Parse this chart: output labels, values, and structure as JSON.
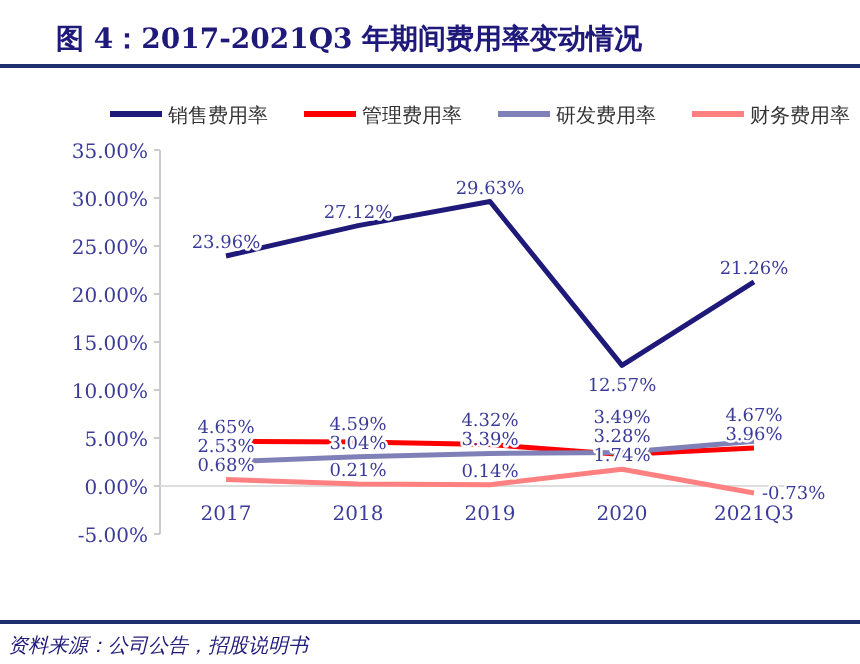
{
  "chart_data": {
    "type": "line",
    "title": "图 4：2017-2021Q3 年期间费用率变动情况",
    "categories": [
      "2017",
      "2018",
      "2019",
      "2020",
      "2021Q3"
    ],
    "series": [
      {
        "name": "销售费用率",
        "color": "#1f1a7a",
        "values": [
          23.96,
          27.12,
          29.63,
          12.57,
          21.26
        ],
        "value_labels": [
          "23.96%",
          "27.12%",
          "29.63%",
          "12.57%",
          "21.26%"
        ]
      },
      {
        "name": "管理费用率",
        "color": "#ff0000",
        "values": [
          4.65,
          4.59,
          4.32,
          3.28,
          3.96
        ],
        "value_labels": [
          "4.65%",
          "4.59%",
          "4.32%",
          "3.28%",
          "3.96%"
        ]
      },
      {
        "name": "研发费用率",
        "color": "#8080b8",
        "values": [
          2.53,
          3.04,
          3.39,
          3.49,
          4.67
        ],
        "value_labels": [
          "2.53%",
          "3.04%",
          "3.39%",
          "3.49%",
          "4.67%"
        ]
      },
      {
        "name": "财务费用率",
        "color": "#ff8080",
        "values": [
          0.68,
          0.21,
          0.14,
          1.74,
          -0.73
        ],
        "value_labels": [
          "0.68%",
          "0.21%",
          "0.14%",
          "1.74%",
          "-0.73%"
        ]
      }
    ],
    "ylim": [
      -5,
      35
    ],
    "yticks": [
      {
        "value": -5,
        "label": "-5.00%"
      },
      {
        "value": 0,
        "label": "0.00%"
      },
      {
        "value": 5,
        "label": "5.00%"
      },
      {
        "value": 10,
        "label": "10.00%"
      },
      {
        "value": 15,
        "label": "15.00%"
      },
      {
        "value": 20,
        "label": "20.00%"
      },
      {
        "value": 25,
        "label": "25.00%"
      },
      {
        "value": 30,
        "label": "30.00%"
      },
      {
        "value": 35,
        "label": "35.00%"
      }
    ],
    "legend": "top",
    "grid": false,
    "marker": "none",
    "line_style": "solid",
    "annotations": [
      "资料来源：公司公告，招股说明书"
    ]
  }
}
